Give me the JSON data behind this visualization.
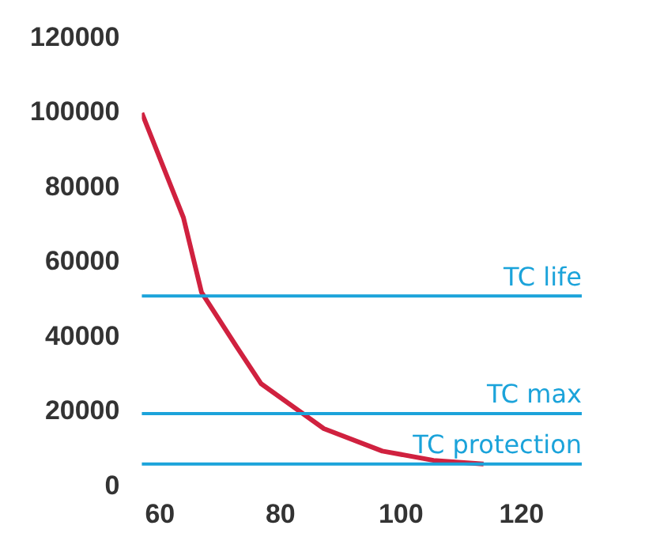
{
  "chart_data": {
    "type": "line",
    "x": [
      57,
      63.9,
      66.9,
      72.7,
      76.8,
      87.2,
      96.9,
      105.4,
      113.7
    ],
    "series": [
      {
        "color": "#d0213f",
        "values": [
          100000,
          72000,
          52000,
          37500,
          27500,
          15500,
          9500,
          7000,
          6000
        ]
      }
    ],
    "xlim": [
      57,
      130
    ],
    "xticks": [
      60,
      80,
      100,
      120
    ],
    "ylim": [
      0,
      120000
    ],
    "yticks": [
      0,
      20000,
      40000,
      60000,
      80000,
      100000,
      120000
    ],
    "ref_lines": [
      {
        "axis": "y",
        "value": 51000,
        "label": "TC life",
        "color": "#1ba3da"
      },
      {
        "axis": "y",
        "value": 19500,
        "label": "TC max",
        "color": "#1ba3da"
      },
      {
        "axis": "y",
        "value": 6000,
        "label": "TC protection",
        "color": "#1ba3da"
      }
    ],
    "grid": false,
    "legend": false,
    "marker": "none",
    "line_style": "solid"
  }
}
